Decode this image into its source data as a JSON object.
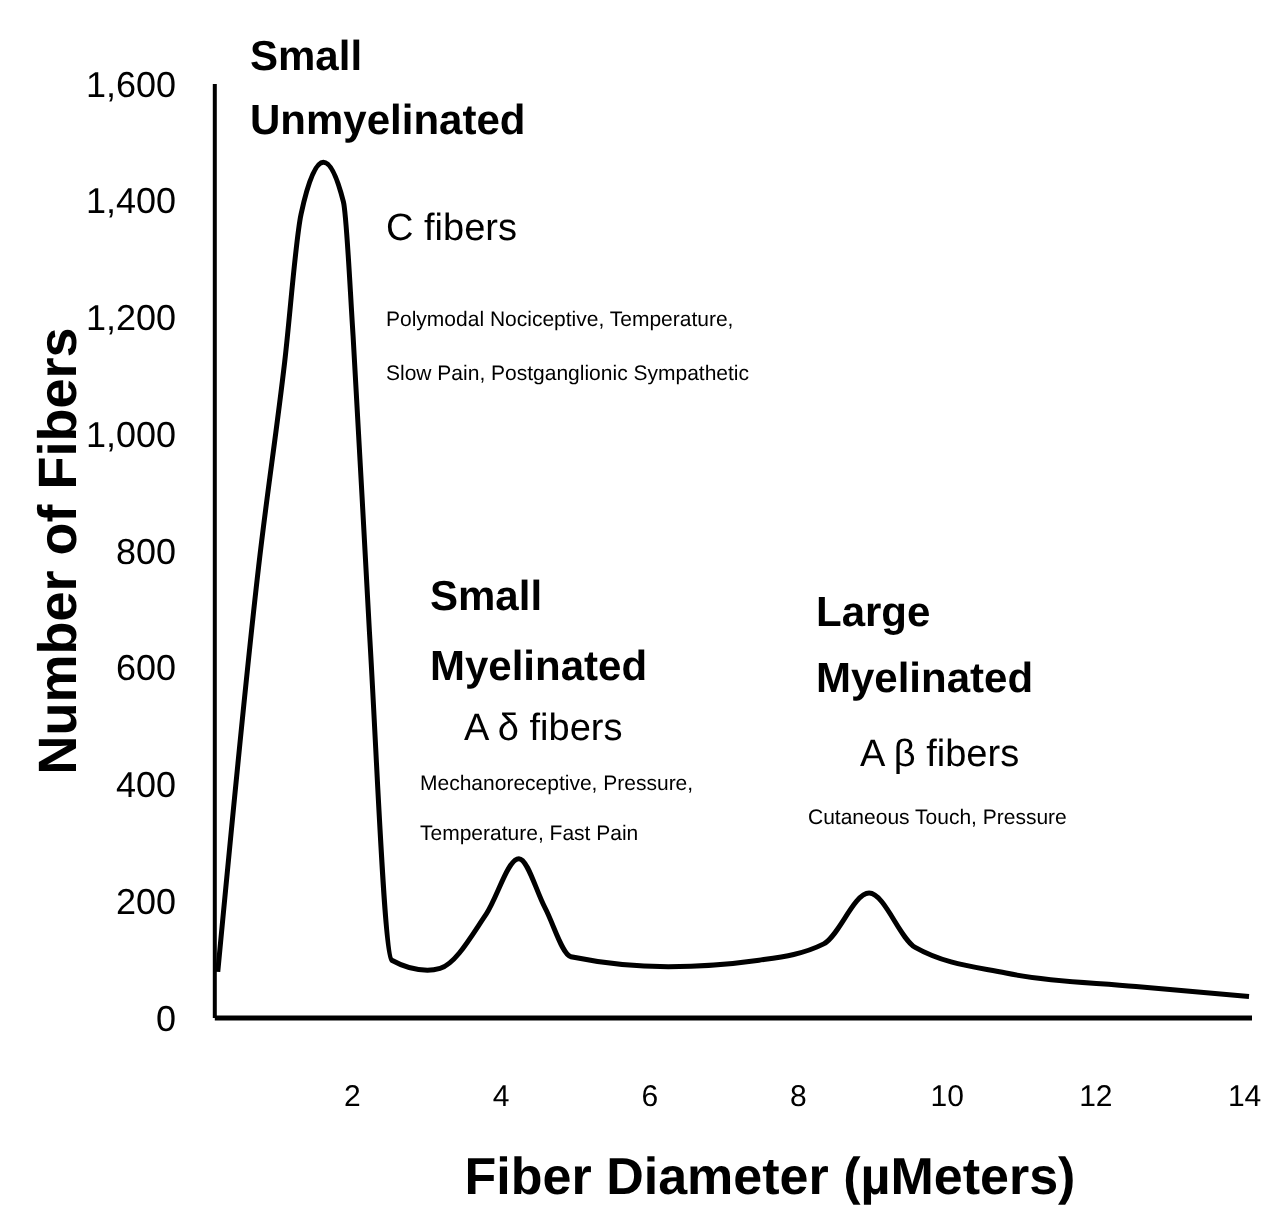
{
  "chart_data": {
    "type": "line",
    "xlabel": "Fiber Diameter (µMeters)",
    "ylabel": "Number of Fibers",
    "xlim": [
      0.15,
      14.1
    ],
    "ylim": [
      0,
      1600
    ],
    "xticks": [
      2,
      4,
      6,
      8,
      10,
      12,
      14
    ],
    "yticks": [
      {
        "value": 0,
        "label": "0"
      },
      {
        "value": 200,
        "label": "200"
      },
      {
        "value": 400,
        "label": "400"
      },
      {
        "value": 600,
        "label": "600"
      },
      {
        "value": 800,
        "label": "800"
      },
      {
        "value": 1000,
        "label": "1,000"
      },
      {
        "value": 1200,
        "label": "1,200"
      },
      {
        "value": 1400,
        "label": "1,400"
      },
      {
        "value": 1600,
        "label": "1,600"
      }
    ],
    "series": [
      {
        "color": "#000000",
        "x": [
          0.19,
          0.74,
          1.09,
          1.31,
          1.61,
          1.88,
          2.01,
          2.23,
          2.53,
          3.01,
          3.18,
          3.8,
          4.24,
          4.59,
          4.94,
          6.25,
          7.47,
          8.34,
          8.95,
          9.57,
          10.79,
          12.54,
          14.06
        ],
        "values": [
          79,
          774,
          1124,
          1377,
          1466,
          1398,
          1168,
          661,
          99,
          82,
          85,
          178,
          273,
          189,
          105,
          88,
          99,
          127,
          214,
          121,
          77,
          54,
          37
        ]
      }
    ],
    "annotations": [
      "Small",
      "Unmyelinated",
      "C fibers",
      "Polymodal Nociceptive, Temperature,",
      "Slow Pain, Postganglionic Sympathetic",
      "Small",
      "Myelinated",
      "A δ fibers",
      "Mechanoreceptive, Pressure,",
      "Temperature, Fast Pain",
      "Large",
      "Myelinated",
      "A β fibers",
      "Cutaneous Touch, Pressure"
    ]
  }
}
